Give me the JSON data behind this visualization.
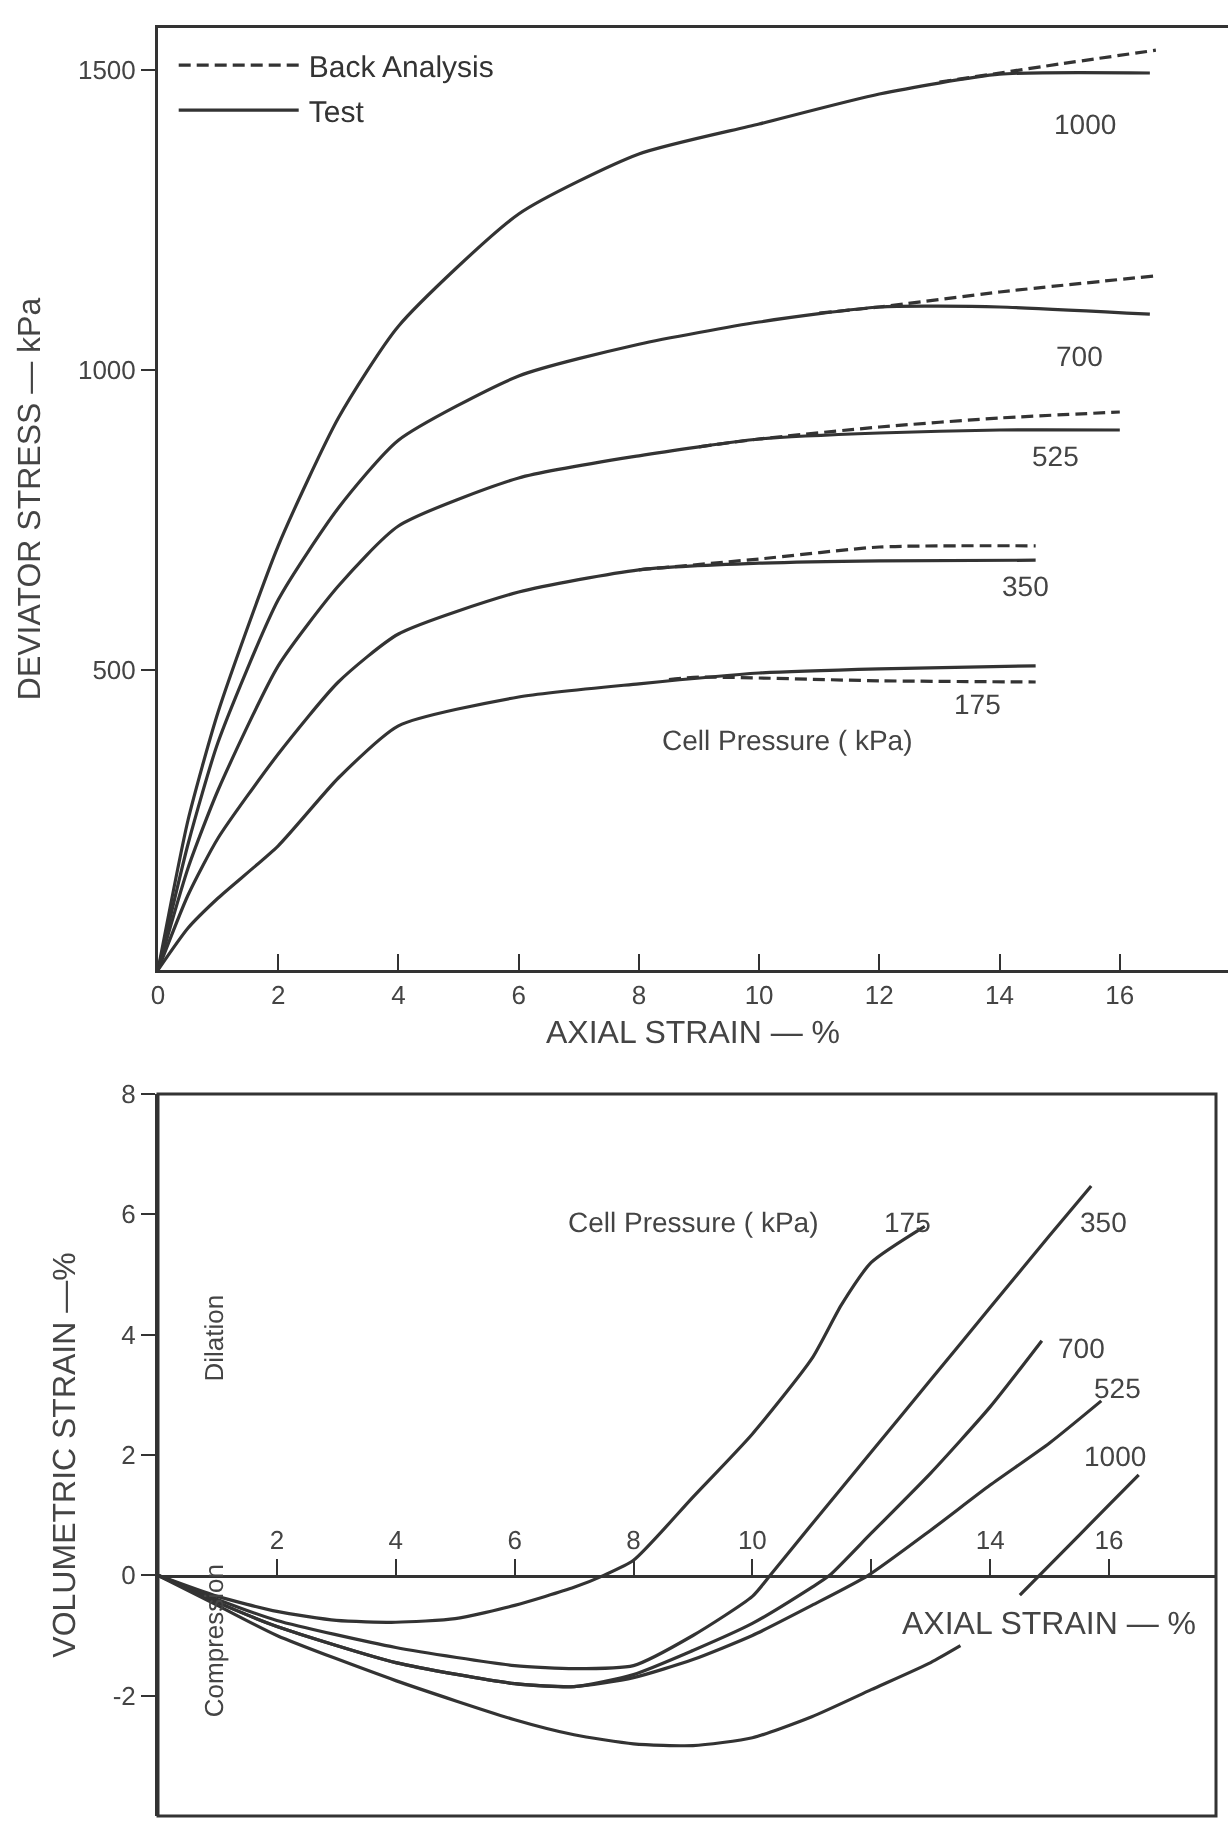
{
  "chart_data": [
    {
      "type": "line",
      "xlabel": "AXIAL STRAIN — %",
      "ylabel": "DEVIATOR STRESS — kPa",
      "xlim": [
        0,
        17.8
      ],
      "ylim": [
        0,
        1570
      ],
      "xticks": [
        0,
        2,
        4,
        6,
        8,
        10,
        12,
        14,
        16
      ],
      "yticks": [
        500,
        1000,
        1500
      ],
      "legend": "top left",
      "series": [
        {
          "name": "Back Analysis",
          "color": "#333333",
          "line_style": "dashed",
          "x": [
            13,
            14,
            15,
            16.6
          ],
          "values": [
            1480,
            1495,
            1510,
            1533
          ]
        },
        {
          "color": "#333333",
          "line_style": "dashed",
          "x": [
            11,
            12,
            14,
            16.6
          ],
          "values": [
            1095,
            1105,
            1130,
            1157
          ]
        },
        {
          "color": "#333333",
          "line_style": "dashed",
          "x": [
            9,
            10,
            12,
            14,
            16
          ],
          "values": [
            872,
            885,
            905,
            920,
            930
          ]
        },
        {
          "color": "#333333",
          "line_style": "dashed",
          "x": [
            8,
            10,
            12,
            14.6
          ],
          "values": [
            667,
            685,
            705,
            707
          ]
        },
        {
          "color": "#333333",
          "line_style": "dashed",
          "x": [
            8.5,
            9,
            12,
            14.6
          ],
          "values": [
            484,
            488,
            482,
            480
          ]
        },
        {
          "name": "Test",
          "color": "#333333",
          "line_style": "solid",
          "x": [
            0,
            0.5,
            1,
            2,
            3,
            4,
            6,
            8,
            10,
            12,
            14,
            16.5
          ],
          "values": [
            0,
            250,
            430,
            707,
            920,
            1073,
            1260,
            1360,
            1410,
            1460,
            1493,
            1495
          ]
        },
        {
          "color": "#333333",
          "line_style": "solid",
          "x": [
            0,
            0.5,
            1,
            2,
            3,
            4,
            6,
            8,
            10,
            12,
            14,
            16.5
          ],
          "values": [
            0,
            210,
            380,
            617,
            770,
            883,
            990,
            1043,
            1080,
            1105,
            1105,
            1093
          ]
        },
        {
          "color": "#333333",
          "line_style": "solid",
          "x": [
            0,
            0.5,
            1,
            2,
            3,
            4,
            6,
            8,
            10,
            12,
            14,
            16
          ],
          "values": [
            0,
            170,
            300,
            507,
            640,
            740,
            820,
            857,
            885,
            895,
            900,
            900
          ]
        },
        {
          "color": "#333333",
          "line_style": "solid",
          "x": [
            0,
            0.5,
            1,
            2,
            3,
            4,
            6,
            8,
            10,
            12,
            14.6
          ],
          "values": [
            0,
            125,
            220,
            360,
            480,
            560,
            630,
            667,
            678,
            682,
            683
          ]
        },
        {
          "color": "#333333",
          "line_style": "solid",
          "x": [
            0,
            0.5,
            1,
            2,
            3,
            4,
            6,
            8,
            10,
            12,
            14.6
          ],
          "values": [
            0,
            70,
            120,
            207,
            320,
            407,
            455,
            477,
            495,
            502,
            507
          ]
        }
      ],
      "annotations": [
        "1000",
        "700",
        "525",
        "350",
        "175",
        "Cell Pressure ( kPa)"
      ]
    },
    {
      "type": "line",
      "xlabel": "AXIAL STRAIN — %",
      "ylabel": "VOLUMETRIC STRAIN —%",
      "xlim": [
        0,
        17.8
      ],
      "ylim": [
        -4,
        8
      ],
      "xticks": [
        2,
        4,
        6,
        8,
        10,
        {
          "value": 12,
          "label": null
        },
        14,
        16
      ],
      "yticks": [
        -2,
        0,
        2,
        4,
        6,
        8
      ],
      "series": [
        {
          "color": "#333333",
          "line_style": "solid",
          "x": [
            0,
            1,
            2,
            3,
            4,
            5,
            6,
            7,
            7.5,
            8,
            9,
            10,
            11,
            11.5,
            12,
            12.9
          ],
          "values": [
            0,
            -0.35,
            -0.6,
            -0.75,
            -0.78,
            -0.72,
            -0.5,
            -0.2,
            0,
            0.25,
            1.3,
            2.35,
            3.6,
            4.5,
            5.2,
            5.8
          ]
        },
        {
          "color": "#333333",
          "line_style": "solid",
          "x": [
            0,
            1,
            2,
            4,
            6,
            7,
            8,
            9,
            10,
            10.3,
            11,
            12,
            13,
            14,
            15,
            15.7
          ],
          "values": [
            0,
            -0.4,
            -0.75,
            -1.2,
            -1.5,
            -1.55,
            -1.5,
            -1,
            -0.35,
            0,
            0.85,
            2.05,
            3.25,
            4.45,
            5.65,
            6.47
          ]
        },
        {
          "color": "#333333",
          "line_style": "solid",
          "x": [
            0,
            1,
            2,
            4,
            6,
            7,
            8,
            9,
            10,
            11,
            11.3,
            12,
            13,
            14,
            14.87
          ],
          "values": [
            0,
            -0.45,
            -0.85,
            -1.45,
            -1.8,
            -1.85,
            -1.65,
            -1.25,
            -0.8,
            -0.2,
            0,
            0.7,
            1.7,
            2.8,
            3.9
          ]
        },
        {
          "color": "#333333",
          "line_style": "solid",
          "x": [
            0,
            1,
            2,
            4,
            6,
            7,
            8,
            9,
            10,
            11,
            11.95,
            13,
            14,
            15,
            15.87
          ],
          "values": [
            0,
            -0.45,
            -0.85,
            -1.45,
            -1.8,
            -1.85,
            -1.7,
            -1.4,
            -1,
            -0.5,
            0,
            0.75,
            1.5,
            2.2,
            2.9
          ]
        },
        {
          "color": "#333333",
          "line_style": "solid",
          "x": [
            0,
            1,
            2,
            4,
            6,
            7,
            8,
            9,
            10,
            11,
            12,
            13,
            13.5,
            14,
            14.5,
            15,
            16,
            16.5
          ],
          "values": [
            0,
            -0.5,
            -1,
            -1.75,
            -2.4,
            -2.65,
            -2.8,
            -2.83,
            -2.7,
            -2.35,
            -1.9,
            -1.45,
            -1.17,
            null,
            -0.33,
            0.17,
            1.17,
            1.67
          ]
        }
      ],
      "annotations": [
        "Cell Pressure ( kPa)",
        "175",
        "350",
        "700",
        "525",
        "1000",
        "Dilation",
        "Compression"
      ]
    }
  ]
}
